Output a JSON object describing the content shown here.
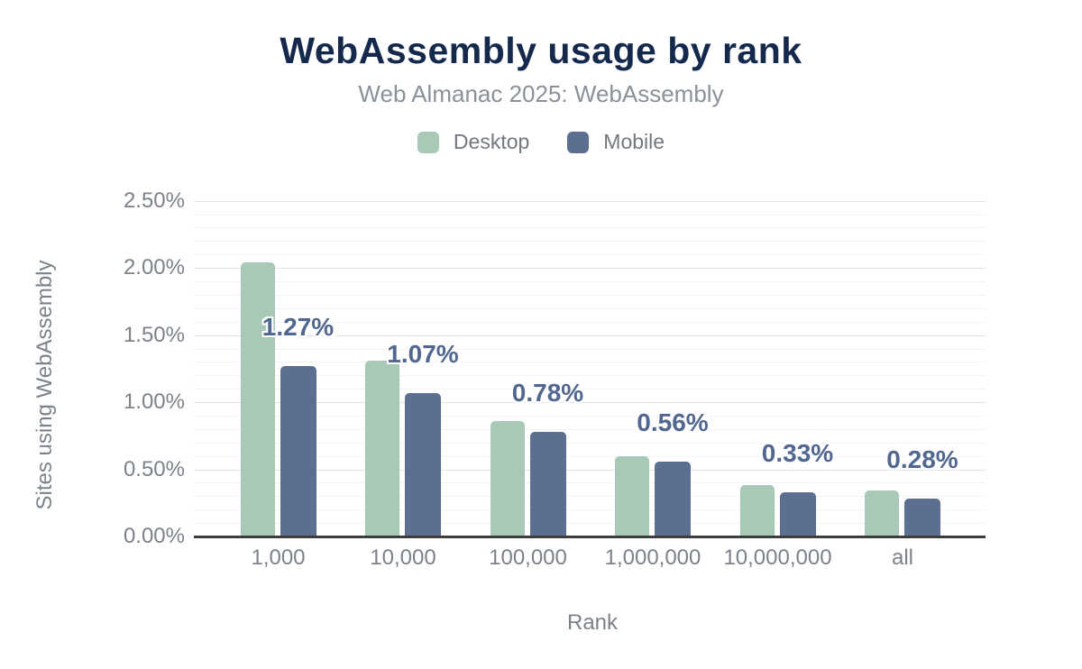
{
  "title": "WebAssembly usage by rank",
  "subtitle": "Web Almanac 2025: WebAssembly",
  "legend": [
    {
      "label": "Desktop",
      "color": "#a9c9b7"
    },
    {
      "label": "Mobile",
      "color": "#5d6f90"
    }
  ],
  "colors": {
    "title": "#14294b",
    "subtitle": "#8b9199",
    "axis_text": "#7c828a",
    "value_label": "#51678f",
    "axis_line": "#3d3d3d",
    "grid_major": "#e3e3e3",
    "grid_minor": "#f3f3f3",
    "background": "#ffffff"
  },
  "chart_data": {
    "type": "bar",
    "title": "WebAssembly usage by rank",
    "subtitle": "Web Almanac 2025: WebAssembly",
    "xlabel": "Rank",
    "ylabel": "Sites using WebAssembly",
    "categories": [
      "1,000",
      "10,000",
      "100,000",
      "1,000,000",
      "10,000,000",
      "all"
    ],
    "series": [
      {
        "name": "Desktop",
        "color": "#a9c9b7",
        "values": [
          2.04,
          1.31,
          0.86,
          0.6,
          0.38,
          0.34
        ],
        "unit": "%"
      },
      {
        "name": "Mobile",
        "color": "#5d6f90",
        "values": [
          1.27,
          1.07,
          0.78,
          0.56,
          0.33,
          0.28
        ],
        "unit": "%",
        "data_labels": [
          "1.27%",
          "1.07%",
          "0.78%",
          "0.56%",
          "0.33%",
          "0.28%"
        ]
      }
    ],
    "ylim": [
      0,
      2.5
    ],
    "y_ticks": [
      {
        "label": "0.00%",
        "value": 0.0
      },
      {
        "label": "0.50%",
        "value": 0.5
      },
      {
        "label": "1.00%",
        "value": 1.0
      },
      {
        "label": "1.50%",
        "value": 1.5
      },
      {
        "label": "2.00%",
        "value": 2.0
      },
      {
        "label": "2.50%",
        "value": 2.5
      }
    ],
    "grid": {
      "minor_step": 0.1,
      "major_step": 0.5,
      "horizontal": true
    },
    "legend_position": "top"
  }
}
